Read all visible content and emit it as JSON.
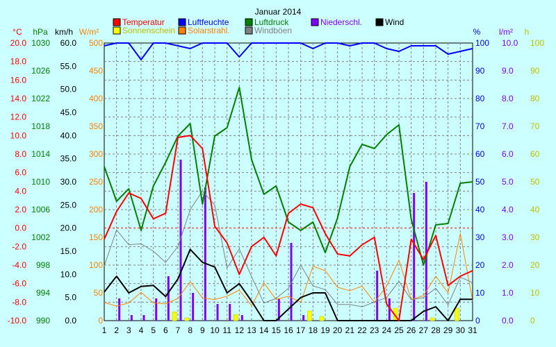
{
  "chart_data": {
    "type": "line",
    "title": "Januar 2014",
    "x": [
      1,
      2,
      3,
      4,
      5,
      6,
      7,
      8,
      9,
      10,
      11,
      12,
      13,
      14,
      15,
      16,
      17,
      18,
      19,
      20,
      21,
      22,
      23,
      24,
      25,
      26,
      27,
      28,
      29,
      30,
      31
    ],
    "axes": [
      {
        "key": "temp",
        "unit": "°C",
        "color": "#ff0000",
        "ticks": [
          "20.0",
          "18.0",
          "16.0",
          "14.0",
          "12.0",
          "10.0",
          "8.0",
          "6.0",
          "4.0",
          "2.0",
          "0.0",
          "-2.0",
          "-4.0",
          "-6.0",
          "-8.0",
          "-10.0"
        ],
        "range": [
          -10,
          20
        ]
      },
      {
        "key": "press",
        "unit": "hPa",
        "color": "#008000",
        "ticks": [
          "1030",
          "1026",
          "1022",
          "1018",
          "1014",
          "1010",
          "1006",
          "1002",
          "998",
          "994",
          "990"
        ],
        "range": [
          990,
          1030
        ]
      },
      {
        "key": "wind",
        "unit": "km/h",
        "color": "#000000",
        "ticks": [
          "60.0",
          "55.0",
          "50.0",
          "45.0",
          "40.0",
          "35.0",
          "30.0",
          "25.0",
          "20.0",
          "15.0",
          "10.0",
          "5.0",
          "0.0"
        ],
        "range": [
          0,
          60
        ]
      },
      {
        "key": "solar",
        "unit": "W/m²",
        "color": "#ff8000",
        "ticks": [
          "500",
          "450",
          "400",
          "350",
          "300",
          "250",
          "200",
          "150",
          "100",
          "50",
          "0"
        ],
        "range": [
          0,
          500
        ]
      },
      {
        "key": "hum",
        "unit": "%",
        "color": "#0000ff",
        "ticks": [
          "100",
          "90",
          "80",
          "70",
          "60",
          "50",
          "40",
          "30",
          "20",
          "10",
          "0"
        ],
        "range": [
          0,
          100
        ]
      },
      {
        "key": "rain",
        "unit": "l/m²",
        "color": "#8000ff",
        "ticks": [
          "10.0",
          "9.0",
          "8.0",
          "7.0",
          "6.0",
          "5.0",
          "4.0",
          "3.0",
          "2.0",
          "1.0",
          "0.0"
        ],
        "range": [
          0,
          10
        ]
      },
      {
        "key": "sun",
        "unit": "h",
        "color": "#c0c000",
        "ticks": [
          "100",
          "90",
          "80",
          "70",
          "60",
          "50",
          "40",
          "30",
          "20",
          "10",
          "0"
        ],
        "range": [
          0,
          100
        ]
      }
    ],
    "legend": [
      {
        "label": "Temperatur",
        "color": "#ff0000"
      },
      {
        "label": "Luftfeuchte",
        "color": "#0000ff"
      },
      {
        "label": "Luftdruck",
        "color": "#008000"
      },
      {
        "label": "Niederschl.",
        "color": "#8000ff"
      },
      {
        "label": "Wind",
        "color": "#000000"
      },
      {
        "label": "Sonnenschein",
        "color": "#ffff00"
      },
      {
        "label": "Solarstrahl.",
        "color": "#ff8000"
      },
      {
        "label": "Windböen",
        "color": "#808080"
      }
    ],
    "series": [
      {
        "name": "Temperatur",
        "axis": "temp",
        "kind": "line",
        "color": "#ff0000",
        "width": 2,
        "values": [
          -1.2,
          1.8,
          3.8,
          3.2,
          1.0,
          1.6,
          9.8,
          10.0,
          8.6,
          0.2,
          -1.6,
          -5.0,
          -2.0,
          -1.0,
          -3.0,
          1.6,
          2.6,
          2.2,
          -0.6,
          -2.8,
          -3.0,
          -1.8,
          -1.0,
          -8.2,
          -10.0,
          -1.2,
          -3.4,
          -0.8,
          -6.2,
          -5.2,
          -4.6
        ]
      },
      {
        "name": "Luftfeuchte",
        "axis": "hum",
        "kind": "line",
        "color": "#0000ff",
        "width": 2,
        "values": [
          99,
          100,
          100,
          94,
          100,
          100,
          99,
          98,
          100,
          100,
          100,
          95,
          100,
          100,
          100,
          100,
          100,
          98,
          100,
          100,
          99,
          100,
          100,
          98,
          97,
          99,
          99,
          99,
          96,
          97,
          98
        ]
      },
      {
        "name": "Luftdruck",
        "axis": "press",
        "kind": "line",
        "color": "#008000",
        "width": 2,
        "values": [
          1012.2,
          1007.2,
          1009.0,
          1003.0,
          1009.4,
          1012.8,
          1016.6,
          1018.4,
          1006.8,
          1016.6,
          1017.8,
          1023.6,
          1013.2,
          1008.2,
          1009.4,
          1004.2,
          1003.0,
          1004.2,
          999.8,
          1004.8,
          1012.2,
          1015.4,
          1014.8,
          1016.8,
          1018.2,
          1004.6,
          998.0,
          1003.8,
          1004.0,
          1009.8,
          1010.0
        ]
      },
      {
        "name": "Niederschl.",
        "axis": "rain",
        "kind": "bar",
        "color": "#8000ff",
        "barWidth": 3,
        "offset": 4,
        "values": [
          0,
          0.8,
          0.2,
          0.2,
          0.8,
          1.6,
          5.8,
          1.0,
          4.8,
          0.6,
          0.6,
          0.2,
          0,
          0,
          0.8,
          2.8,
          0.2,
          0,
          0,
          0,
          0,
          0,
          1.8,
          0.8,
          0,
          4.6,
          5.0,
          0,
          0,
          0,
          0
        ]
      },
      {
        "name": "Wind",
        "axis": "wind",
        "kind": "line",
        "color": "#000000",
        "width": 2,
        "values": [
          6.2,
          9.6,
          6.0,
          7.4,
          7.6,
          5.2,
          9.0,
          15.4,
          12.6,
          11.6,
          6.0,
          8.0,
          4.2,
          0,
          0,
          2.5,
          5.0,
          6.0,
          6.0,
          0,
          0,
          0,
          0,
          0,
          0,
          0,
          2.0,
          3.0,
          0,
          4.6,
          4.6
        ]
      },
      {
        "name": "Windböen",
        "axis": "wind",
        "kind": "line",
        "color": "#808080",
        "width": 1,
        "values": [
          11.8,
          19.6,
          16.4,
          16.6,
          15.0,
          12.6,
          16.0,
          24.0,
          28.0,
          25.0,
          11.4,
          15.5,
          9.5,
          3.8,
          4.8,
          7.0,
          12.0,
          7.5,
          6.7,
          3.5,
          3.5,
          3.0,
          4.0,
          5.0,
          8.5,
          4.5,
          5.0,
          7.0,
          3.4,
          9.4,
          8.2
        ]
      },
      {
        "name": "Solarstrahl.",
        "axis": "solar",
        "kind": "line",
        "color": "#ff8000",
        "width": 1,
        "values": [
          33,
          26,
          32,
          51,
          32,
          30,
          40,
          70,
          41,
          38,
          44,
          55,
          27,
          68,
          38,
          44,
          33,
          98,
          90,
          60,
          54,
          62,
          33,
          62,
          109,
          38,
          45,
          80,
          50,
          157,
          36
        ]
      },
      {
        "name": "Sonnenschein",
        "axis": "sun",
        "kind": "bar",
        "color": "#ffff00",
        "stroke": "#c0c000",
        "barWidth": 6,
        "offset": -5,
        "values": [
          0,
          0,
          0,
          0,
          0,
          0,
          3.2,
          1.0,
          0,
          0,
          0,
          2.2,
          0,
          0,
          0,
          0,
          0,
          3.5,
          1.5,
          0,
          0,
          0,
          0,
          0,
          4.5,
          0,
          0,
          1.0,
          0,
          4.5,
          0
        ]
      }
    ],
    "xlim": [
      1,
      31
    ],
    "grid": true
  }
}
